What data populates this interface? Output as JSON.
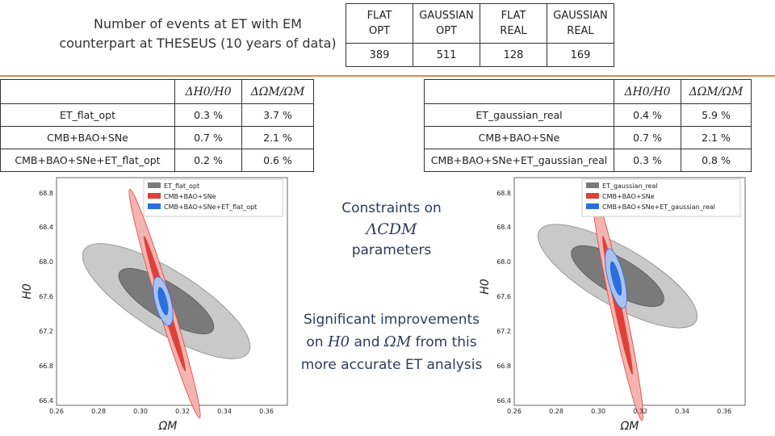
{
  "heading": {
    "line1": "Number of events at ET with EM",
    "line2": "counterpart at THESEUS (10 years of data)"
  },
  "events_table": {
    "headers": [
      [
        "FLAT",
        "OPT"
      ],
      [
        "GAUSSIAN",
        "OPT"
      ],
      [
        "FLAT",
        "REAL"
      ],
      [
        "GAUSSIAN",
        "REAL"
      ]
    ],
    "values": [
      "389",
      "511",
      "128",
      "169"
    ]
  },
  "constraint_headers": [
    "ΔH0/H0",
    "ΔΩM/ΩM"
  ],
  "left_table": {
    "rows": [
      {
        "label": "ET_flat_opt",
        "h0": "0.3 %",
        "om": "3.7 %"
      },
      {
        "label": "CMB+BAO+SNe",
        "h0": "0.7 %",
        "om": "2.1 %"
      },
      {
        "label": "CMB+BAO+SNe+ET_flat_opt",
        "h0": "0.2 %",
        "om": "0.6 %"
      }
    ]
  },
  "right_table": {
    "rows": [
      {
        "label": "ET_gaussian_real",
        "h0": "0.4 %",
        "om": "5.9 %"
      },
      {
        "label": "CMB+BAO+SNe",
        "h0": "0.7 %",
        "om": "2.1 %"
      },
      {
        "label": "CMB+BAO+SNe+ET_gaussian_real",
        "h0": "0.3 %",
        "om": "0.8 %"
      }
    ]
  },
  "middle_text": {
    "constraints_line1": "Constraints on",
    "constraints_math": "ΛCDM",
    "constraints_line3": "parameters",
    "improve_line1": "Significant improvements",
    "improve_on": "on",
    "improve_h0": "H0",
    "improve_and": "and",
    "improve_om": "ΩM",
    "improve_from": "from this",
    "improve_line3": "more accurate ET analysis"
  },
  "colors": {
    "grey": "#7a7a7a",
    "red": "#e0403a",
    "blue": "#2a6fdb",
    "accent_line": "#e38a3a"
  },
  "plots": [
    {
      "xlabel": "ΩM",
      "ylabel": "H0",
      "xticks": [
        "0.26",
        "0.28",
        "0.30",
        "0.32",
        "0.34",
        "0.36"
      ],
      "yticks": [
        "68.8",
        "68.4",
        "68.0",
        "67.6",
        "67.2",
        "66.8",
        "66.4"
      ],
      "legend": [
        "ET_flat_opt",
        "CMB+BAO+SNe",
        "CMB+BAO+SNe+ET_flat_opt"
      ]
    },
    {
      "xlabel": "ΩM",
      "ylabel": "H0",
      "xticks": [
        "0.26",
        "0.28",
        "0.30",
        "0.32",
        "0.34",
        "0.36"
      ],
      "yticks": [
        "68.8",
        "68.4",
        "68.0",
        "67.6",
        "67.2",
        "66.8",
        "66.4"
      ],
      "legend": [
        "ET_gaussian_real",
        "CMB+BAO+SNe",
        "CMB+BAO+SNe+ET_gaussian_real"
      ]
    }
  ]
}
